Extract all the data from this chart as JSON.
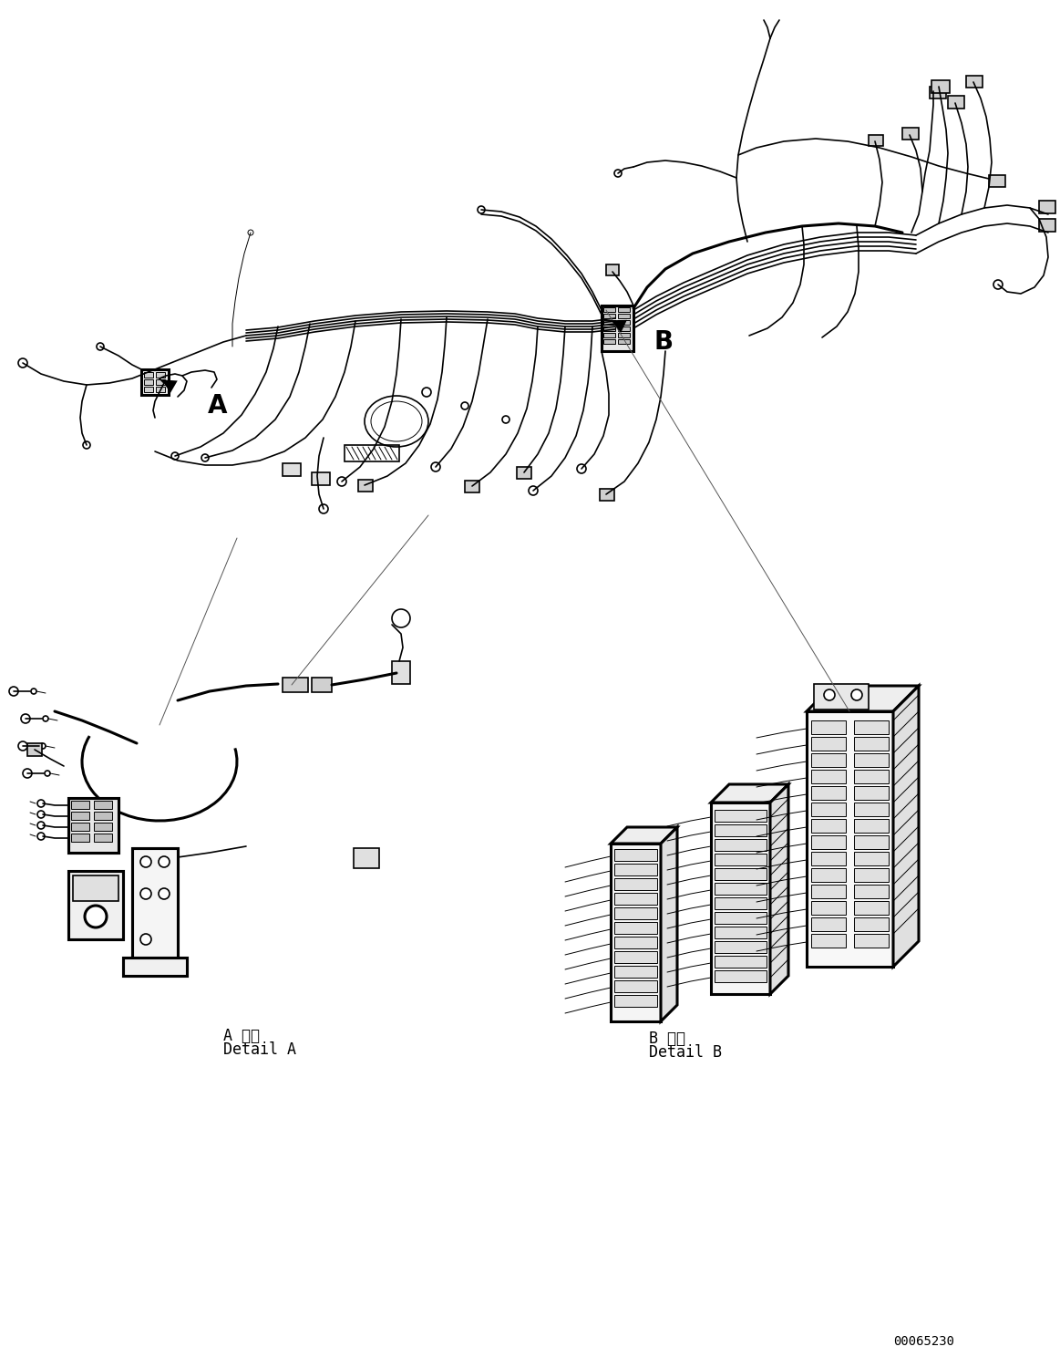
{
  "bg_color": "#ffffff",
  "line_color": "#000000",
  "fig_width": 11.63,
  "fig_height": 14.88,
  "dpi": 100,
  "part_number": "00065230",
  "detail_a_label_line1": "A 詳細",
  "detail_a_label_line2": "Detail A",
  "detail_b_label_line1": "B 詳細",
  "detail_b_label_line2": "Detail B",
  "label_A": "A",
  "label_B": "B",
  "font_size_label": 20,
  "font_size_detail": 12,
  "font_size_partno": 10,
  "lw": 1.2,
  "lw_thick": 2.2,
  "lw_thin": 0.7
}
